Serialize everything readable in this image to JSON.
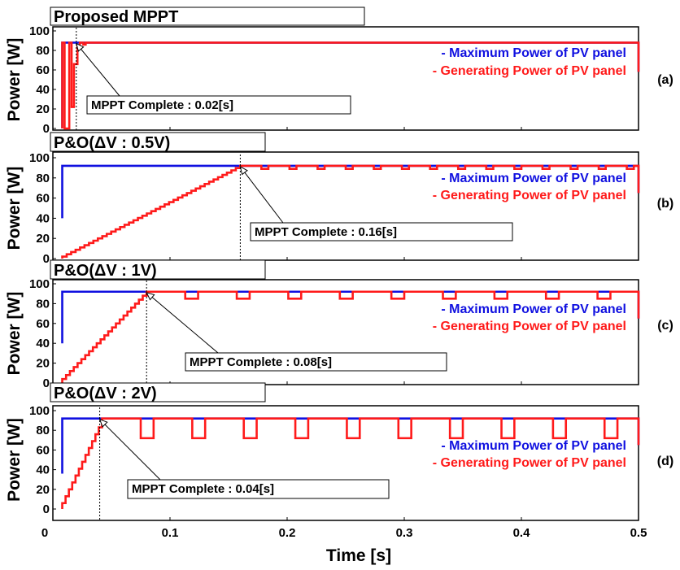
{
  "chart_data": [
    {
      "type": "line",
      "title": "Proposed MPPT",
      "panel_label": "(a)",
      "ylabel": "Power [W]",
      "ylim": [
        0,
        100
      ],
      "yticks": [
        "0",
        "20",
        "40",
        "60",
        "80",
        "100"
      ],
      "xlim": [
        0,
        0.5
      ],
      "max_power": 88,
      "mppt_complete_time": 0.02,
      "annotation": "MPPT Complete : 0.02[s]",
      "series": [
        {
          "name": "- Maximum Power of PV panel",
          "color": "#1010e0",
          "points": [
            [
              0.008,
              0
            ],
            [
              0.008,
              88
            ],
            [
              0.5,
              88
            ],
            [
              0.5,
              58
            ]
          ]
        },
        {
          "name": "- Generating Power of PV panel",
          "color": "#ff1a1a",
          "points": [
            [
              0.008,
              0
            ],
            [
              0.008,
              88
            ],
            [
              0.01,
              88
            ],
            [
              0.01,
              0
            ],
            [
              0.014,
              0
            ],
            [
              0.014,
              88
            ],
            [
              0.016,
              88
            ],
            [
              0.016,
              22
            ],
            [
              0.018,
              22
            ],
            [
              0.018,
              66
            ],
            [
              0.021,
              66
            ],
            [
              0.021,
              84
            ],
            [
              0.023,
              84
            ],
            [
              0.023,
              88
            ],
            [
              0.026,
              88
            ],
            [
              0.026,
              86
            ],
            [
              0.028,
              86
            ],
            [
              0.028,
              88
            ],
            [
              0.5,
              88
            ],
            [
              0.5,
              58
            ]
          ]
        }
      ]
    },
    {
      "type": "line",
      "title": "P&O(ΔV : 0.5V)",
      "panel_label": "(b)",
      "ylabel": "Power [W]",
      "ylim": [
        0,
        100
      ],
      "yticks": [
        "0",
        "20",
        "40",
        "60",
        "80",
        "100"
      ],
      "xlim": [
        0,
        0.5
      ],
      "max_power": 92,
      "mppt_complete_time": 0.16,
      "annotation": "MPPT Complete : 0.16[s]",
      "series": [
        {
          "name": "- Maximum Power of PV panel",
          "color": "#1010e0",
          "points": [
            [
              0.008,
              40
            ],
            [
              0.008,
              92
            ],
            [
              0.5,
              92
            ],
            [
              0.5,
              65
            ]
          ]
        },
        {
          "name": "- Generating Power of PV panel",
          "color": "#ff1a1a",
          "ramp": {
            "t0": 0.008,
            "y0": 2,
            "t1": 0.16,
            "y1": 92,
            "steps": 40
          },
          "osc": {
            "high": 92,
            "low": 89,
            "period": 0.006,
            "end_y": 65
          }
        }
      ]
    },
    {
      "type": "line",
      "title": "P&O(ΔV : 1V)",
      "panel_label": "(c)",
      "ylabel": "Power [W]",
      "ylim": [
        0,
        100
      ],
      "yticks": [
        "0",
        "20",
        "40",
        "60",
        "80",
        "100"
      ],
      "xlim": [
        0,
        0.5
      ],
      "max_power": 92,
      "mppt_complete_time": 0.08,
      "annotation": "MPPT Complete : 0.08[s]",
      "series": [
        {
          "name": "- Maximum Power of PV panel",
          "color": "#1010e0",
          "points": [
            [
              0.008,
              40
            ],
            [
              0.008,
              92
            ],
            [
              0.5,
              92
            ],
            [
              0.5,
              65
            ]
          ]
        },
        {
          "name": "- Generating Power of PV panel",
          "color": "#ff1a1a",
          "ramp": {
            "t0": 0.008,
            "y0": 4,
            "t1": 0.08,
            "y1": 92,
            "steps": 22
          },
          "osc": {
            "high": 92,
            "low": 85,
            "period": 0.011,
            "end_y": 65
          }
        }
      ]
    },
    {
      "type": "line",
      "title": "P&O(ΔV : 2V)",
      "panel_label": "(d)",
      "ylabel": "Power [W]",
      "ylim": [
        0,
        100
      ],
      "yticks": [
        "0",
        "20",
        "40",
        "60",
        "80",
        "100"
      ],
      "xlim": [
        0,
        0.5
      ],
      "max_power": 92,
      "mppt_complete_time": 0.04,
      "annotation": "MPPT Complete : 0.04[s]",
      "series": [
        {
          "name": "- Maximum Power of PV panel",
          "color": "#1010e0",
          "points": [
            [
              0.008,
              36
            ],
            [
              0.008,
              92
            ],
            [
              0.5,
              92
            ],
            [
              0.5,
              65
            ]
          ]
        },
        {
          "name": "- Generating Power of PV panel",
          "color": "#ff1a1a",
          "ramp": {
            "t0": 0.008,
            "y0": 6,
            "t1": 0.042,
            "y1": 90,
            "steps": 12
          },
          "osc": {
            "high": 92,
            "low": 72,
            "period": 0.011,
            "end_y": 65
          }
        }
      ]
    }
  ],
  "xaxis": {
    "label": "Time [s]",
    "ticks": [
      "0",
      "0.1",
      "0.2",
      "0.3",
      "0.4",
      "0.5"
    ]
  }
}
